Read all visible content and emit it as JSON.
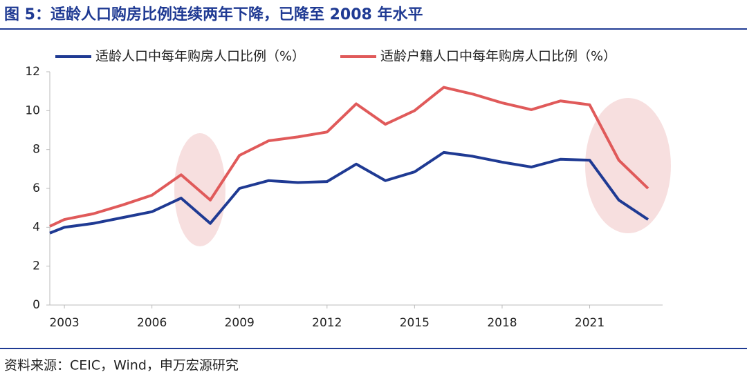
{
  "chart_data": {
    "type": "line",
    "title": "图 5：适龄人口购房比例连续两年下降，已降至 2008 年水平",
    "source": "资料来源：CEIC，Wind，申万宏源研究",
    "x": [
      2002.5,
      2003,
      2004,
      2005,
      2006,
      2007,
      2008,
      2009,
      2010,
      2011,
      2012,
      2013,
      2014,
      2015,
      2016,
      2017,
      2018,
      2019,
      2020,
      2021,
      2022,
      2023
    ],
    "series": [
      {
        "name": "适龄人口中每年购房人口比例（%）",
        "color": "#1f3a93",
        "values": [
          3.7,
          4.0,
          4.2,
          4.5,
          4.8,
          5.5,
          4.2,
          6.0,
          6.4,
          6.3,
          6.35,
          7.25,
          6.4,
          6.85,
          7.85,
          7.65,
          7.35,
          7.1,
          7.5,
          7.45,
          5.4,
          4.4
        ]
      },
      {
        "name": "适龄户籍人口中每年购房人口比例（%）",
        "color": "#e05a5a",
        "values": [
          4.05,
          4.4,
          4.7,
          5.15,
          5.65,
          6.7,
          5.4,
          7.7,
          8.45,
          8.65,
          8.9,
          10.35,
          9.3,
          10.0,
          11.2,
          10.85,
          10.4,
          10.05,
          10.5,
          10.3,
          7.45,
          6.0
        ]
      }
    ],
    "xlim": [
      2002.5,
      2023.5
    ],
    "xticks": [
      2003,
      2006,
      2009,
      2012,
      2015,
      2018,
      2021
    ],
    "ylim": [
      0,
      12
    ],
    "yticks": [
      0,
      2,
      4,
      6,
      8,
      10,
      12
    ]
  }
}
